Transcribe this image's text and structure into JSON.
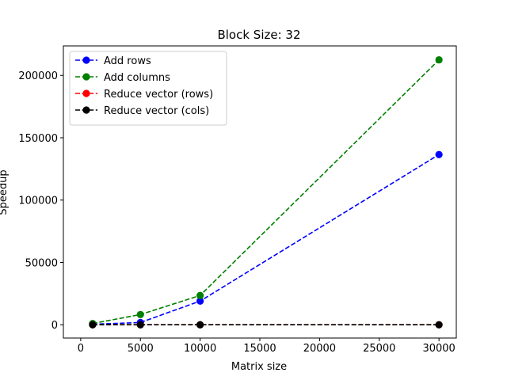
{
  "chart_data": {
    "type": "line",
    "title": "Block Size: 32",
    "xlabel": "Matrix size",
    "ylabel": "Speedup",
    "xlim": [
      -1450,
      31450
    ],
    "ylim": [
      -10650,
      223650
    ],
    "xticks": [
      0,
      5000,
      10000,
      15000,
      20000,
      25000,
      30000
    ],
    "yticks": [
      0,
      50000,
      100000,
      150000,
      200000
    ],
    "grid": false,
    "legend_position": "upper left",
    "x": [
      1000,
      5000,
      10000,
      30000
    ],
    "series": [
      {
        "name": "Add rows",
        "color": "#0000ff",
        "linestyle": "dashed",
        "marker": "circle",
        "values": [
          400,
          1800,
          19000,
          136500
        ]
      },
      {
        "name": "Add columns",
        "color": "#008000",
        "linestyle": "dashed",
        "marker": "circle",
        "values": [
          1000,
          8200,
          23500,
          212500
        ]
      },
      {
        "name": "Reduce vector (rows)",
        "color": "#ff0000",
        "linestyle": "dashed",
        "marker": "circle",
        "values": [
          0,
          0,
          0,
          0
        ]
      },
      {
        "name": "Reduce vector (cols)",
        "color": "#000000",
        "linestyle": "dashed",
        "marker": "circle",
        "values": [
          0,
          0,
          0,
          0
        ]
      }
    ]
  }
}
